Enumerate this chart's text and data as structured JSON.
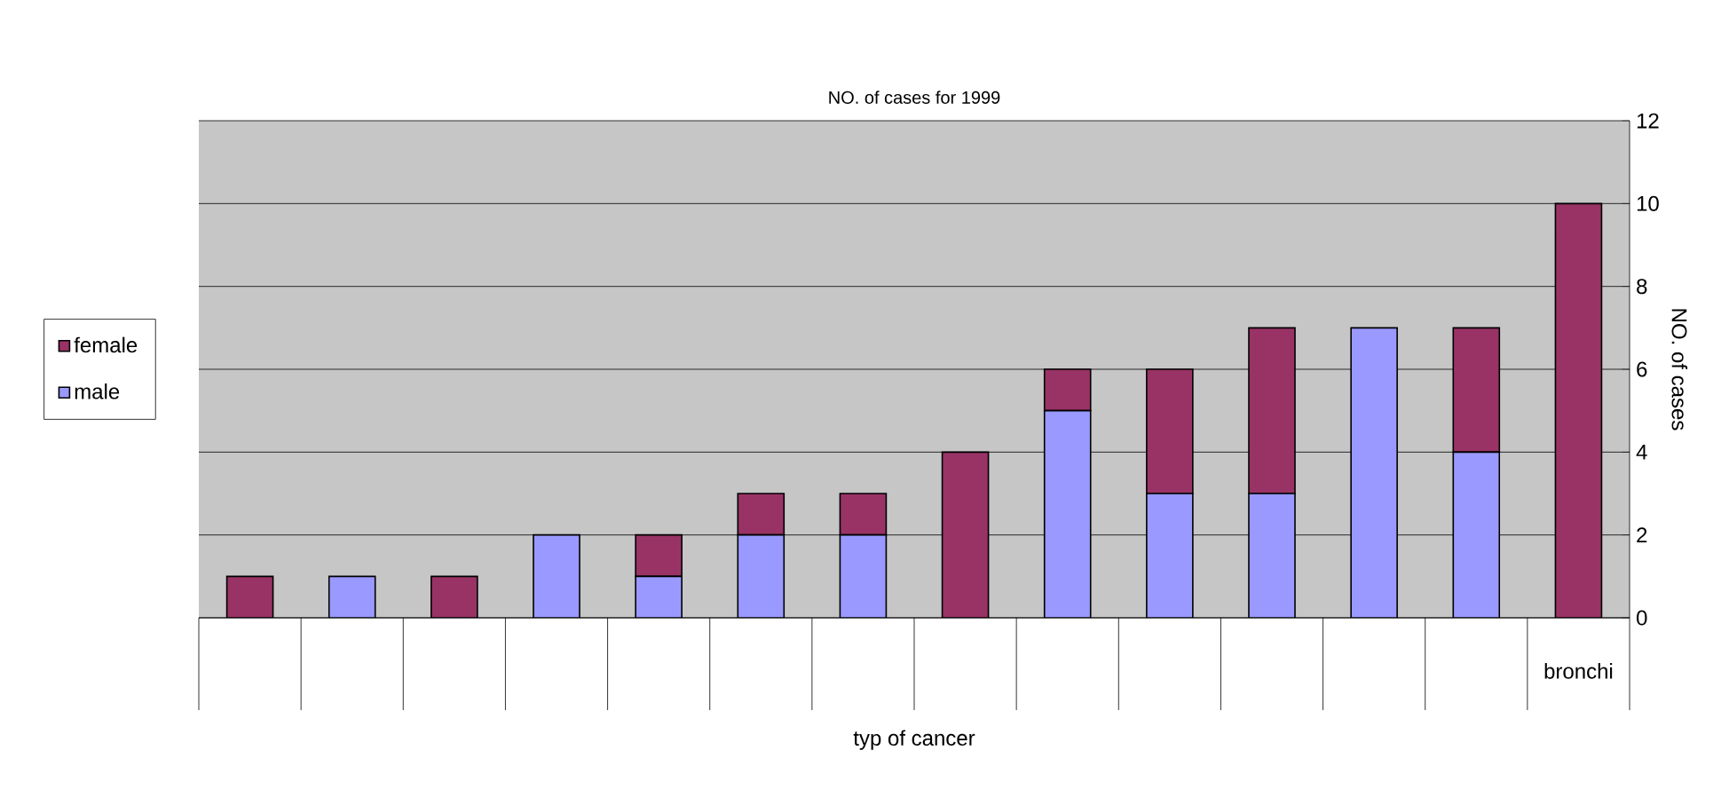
{
  "chart_data": {
    "type": "bar",
    "stacked": true,
    "title": "NO. of cases for 1999",
    "xlabel": "typ of cancer",
    "ylabel": "NO. of cases",
    "categories": [
      null,
      null,
      null,
      null,
      null,
      null,
      null,
      null,
      null,
      null,
      null,
      null,
      null,
      "bronchi"
    ],
    "series": [
      {
        "name": "male",
        "color": "#9999ff",
        "values": [
          0,
          1,
          0,
          2,
          1,
          2,
          2,
          0,
          5,
          3,
          3,
          7,
          4,
          0
        ]
      },
      {
        "name": "female",
        "color": "#993366",
        "values": [
          1,
          0,
          1,
          0,
          1,
          1,
          1,
          4,
          1,
          3,
          4,
          0,
          3,
          10
        ]
      }
    ],
    "ylim": [
      0,
      12
    ],
    "yticks": [
      0,
      2,
      4,
      6,
      8,
      10,
      12
    ],
    "grid": "y",
    "legend": "left"
  }
}
